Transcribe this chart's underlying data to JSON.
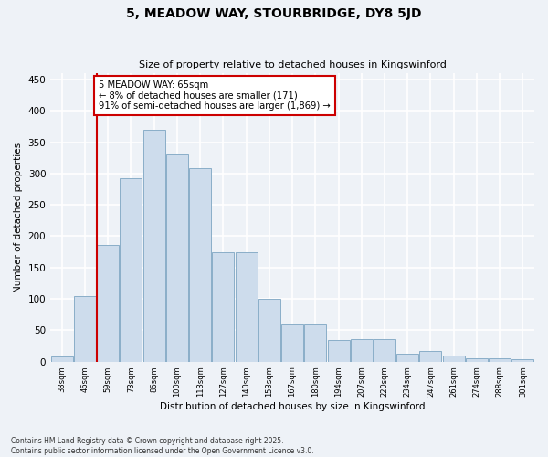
{
  "title1": "5, MEADOW WAY, STOURBRIDGE, DY8 5JD",
  "title2": "Size of property relative to detached houses in Kingswinford",
  "xlabel": "Distribution of detached houses by size in Kingswinford",
  "ylabel": "Number of detached properties",
  "categories": [
    "33sqm",
    "46sqm",
    "59sqm",
    "73sqm",
    "86sqm",
    "100sqm",
    "113sqm",
    "127sqm",
    "140sqm",
    "153sqm",
    "167sqm",
    "180sqm",
    "194sqm",
    "207sqm",
    "220sqm",
    "234sqm",
    "247sqm",
    "261sqm",
    "274sqm",
    "288sqm",
    "301sqm"
  ],
  "values": [
    8,
    104,
    186,
    293,
    370,
    330,
    308,
    175,
    175,
    100,
    59,
    59,
    35,
    36,
    36,
    13,
    17,
    10,
    6,
    6,
    4
  ],
  "bar_color": "#cddcec",
  "bar_edge_color": "#8aaec8",
  "background_color": "#eef2f7",
  "grid_color": "#ffffff",
  "vline_color": "#cc0000",
  "vline_x_index": 2,
  "annotation_text": "5 MEADOW WAY: 65sqm\n← 8% of detached houses are smaller (171)\n91% of semi-detached houses are larger (1,869) →",
  "annotation_box_color": "#ffffff",
  "annotation_box_edge": "#cc0000",
  "ylim": [
    0,
    460
  ],
  "yticks": [
    0,
    50,
    100,
    150,
    200,
    250,
    300,
    350,
    400,
    450
  ],
  "footer": "Contains HM Land Registry data © Crown copyright and database right 2025.\nContains public sector information licensed under the Open Government Licence v3.0."
}
